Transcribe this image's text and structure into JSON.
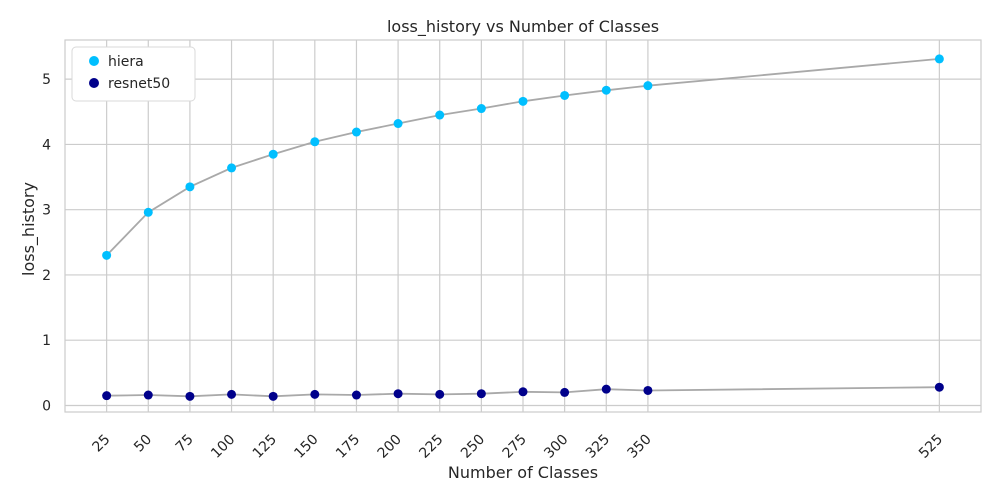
{
  "chart_data": {
    "type": "scatter",
    "title": "loss_history vs Number of Classes",
    "xlabel": "Number of Classes",
    "ylabel": "loss_history",
    "x_ticks": [
      25,
      50,
      75,
      100,
      125,
      150,
      175,
      200,
      225,
      250,
      275,
      300,
      325,
      350,
      525
    ],
    "y_ticks": [
      0,
      1,
      2,
      3,
      4,
      5
    ],
    "xlim": [
      0,
      550
    ],
    "ylim": [
      -0.1,
      5.6
    ],
    "grid": true,
    "legend_position": "top-left",
    "line_color": "#a9a9a9",
    "series": [
      {
        "name": "hiera",
        "color": "#00bfff",
        "x": [
          25,
          50,
          75,
          100,
          125,
          150,
          175,
          200,
          225,
          250,
          275,
          300,
          325,
          350,
          525
        ],
        "y": [
          2.3,
          2.96,
          3.35,
          3.64,
          3.85,
          4.04,
          4.19,
          4.32,
          4.45,
          4.55,
          4.66,
          4.75,
          4.83,
          4.9,
          5.31
        ]
      },
      {
        "name": "resnet50",
        "color": "#00008b",
        "x": [
          25,
          50,
          75,
          100,
          125,
          150,
          175,
          200,
          225,
          250,
          275,
          300,
          325,
          350,
          525
        ],
        "y": [
          0.15,
          0.16,
          0.14,
          0.17,
          0.14,
          0.17,
          0.16,
          0.18,
          0.17,
          0.18,
          0.21,
          0.2,
          0.25,
          0.23,
          0.28
        ]
      }
    ]
  }
}
